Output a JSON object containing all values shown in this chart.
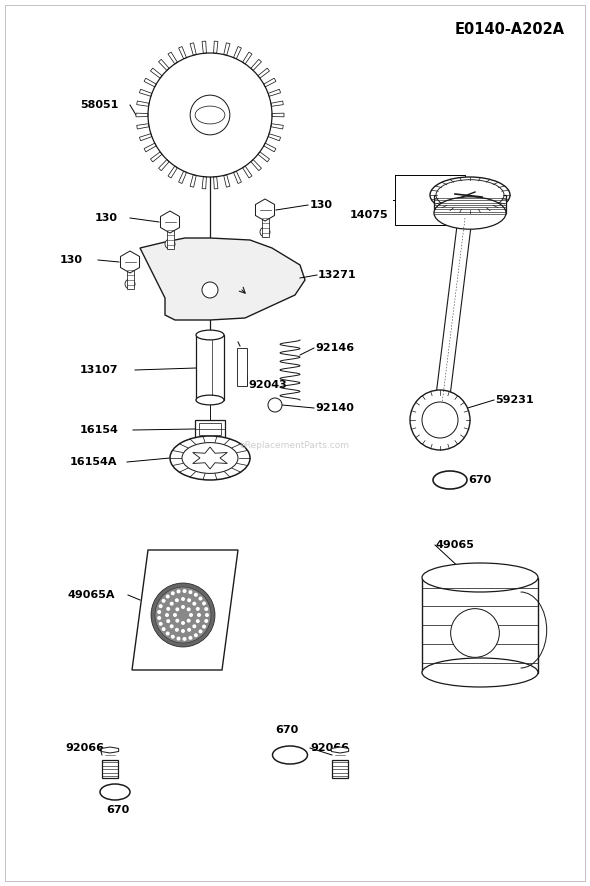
{
  "title": "E0140-A202A",
  "bg_color": "#ffffff",
  "line_color": "#1a1a1a",
  "watermark": "eReplacementParts.com",
  "fig_w": 5.9,
  "fig_h": 8.86,
  "dpi": 100
}
